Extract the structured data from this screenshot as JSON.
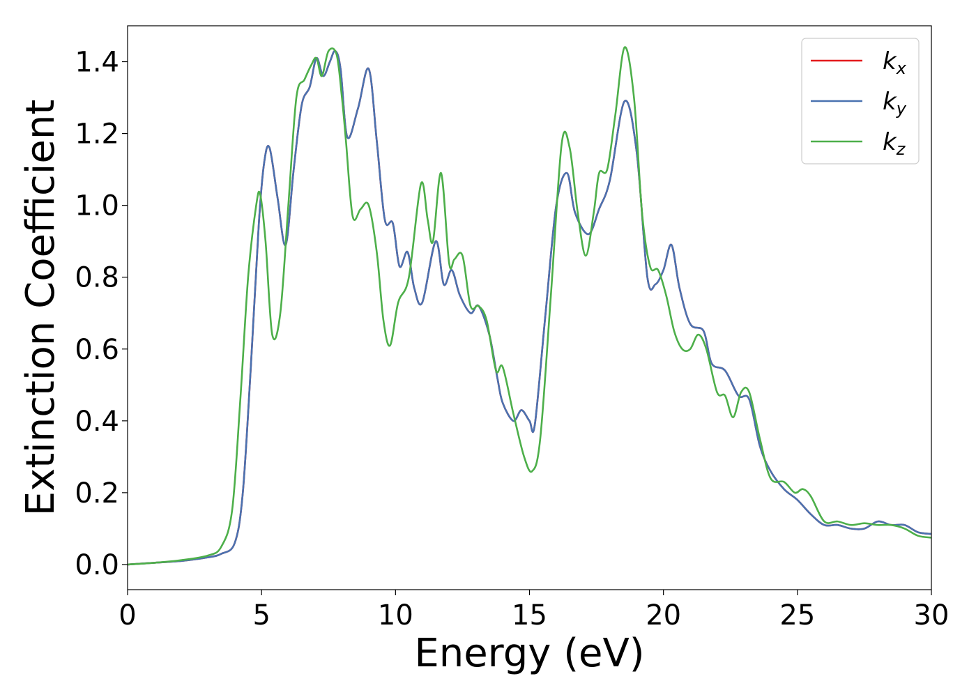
{
  "chart_data": {
    "type": "line",
    "xlabel": "Energy (eV)",
    "ylabel": "Extinction Coefficient",
    "xlim": [
      0,
      30
    ],
    "ylim": [
      -0.07,
      1.5
    ],
    "xticks": [
      0,
      5,
      10,
      15,
      20,
      25,
      30
    ],
    "xtick_labels": [
      "0",
      "5",
      "10",
      "15",
      "20",
      "25",
      "30"
    ],
    "yticks": [
      0.0,
      0.2,
      0.4,
      0.6,
      0.8,
      1.0,
      1.2,
      1.4
    ],
    "ytick_labels": [
      "0.0",
      "0.2",
      "0.4",
      "0.6",
      "0.8",
      "1.0",
      "1.2",
      "1.4"
    ],
    "grid": false,
    "legend_position": "top-right",
    "series": [
      {
        "name": "k_x",
        "label_base": "k",
        "label_sub": "x",
        "color": "#e41a1c",
        "x": [
          0,
          1,
          2,
          3,
          3.5,
          4,
          4.3,
          4.6,
          4.9,
          5.1,
          5.3,
          5.6,
          5.9,
          6.2,
          6.5,
          6.8,
          7.05,
          7.3,
          7.55,
          7.75,
          7.95,
          8.2,
          8.6,
          9.0,
          9.3,
          9.6,
          9.9,
          10.15,
          10.45,
          10.7,
          11.0,
          11.5,
          11.8,
          12.1,
          12.4,
          12.8,
          13.1,
          13.5,
          13.8,
          14.0,
          14.4,
          14.7,
          15.0,
          15.2,
          15.6,
          16.0,
          16.4,
          16.7,
          17.2,
          17.6,
          18.0,
          18.55,
          19.0,
          19.4,
          19.7,
          20.0,
          20.3,
          20.6,
          21.0,
          21.5,
          21.8,
          22.3,
          22.8,
          23.2,
          23.6,
          24.0,
          24.5,
          25.0,
          25.5,
          26.0,
          26.5,
          27.0,
          27.5,
          28.0,
          28.5,
          29.0,
          29.5,
          30.0
        ],
        "y": [
          0,
          0.005,
          0.01,
          0.02,
          0.03,
          0.06,
          0.2,
          0.55,
          0.95,
          1.12,
          1.16,
          1.02,
          0.89,
          1.1,
          1.28,
          1.33,
          1.41,
          1.36,
          1.4,
          1.43,
          1.38,
          1.19,
          1.27,
          1.38,
          1.18,
          0.96,
          0.95,
          0.83,
          0.87,
          0.77,
          0.73,
          0.9,
          0.78,
          0.82,
          0.75,
          0.7,
          0.72,
          0.64,
          0.52,
          0.45,
          0.4,
          0.43,
          0.4,
          0.39,
          0.7,
          1.0,
          1.09,
          0.98,
          0.92,
          0.99,
          1.07,
          1.29,
          1.15,
          0.8,
          0.78,
          0.82,
          0.89,
          0.77,
          0.67,
          0.65,
          0.56,
          0.54,
          0.47,
          0.46,
          0.33,
          0.26,
          0.21,
          0.18,
          0.14,
          0.11,
          0.11,
          0.1,
          0.1,
          0.12,
          0.11,
          0.11,
          0.09,
          0.085
        ]
      },
      {
        "name": "k_y",
        "label_base": "k",
        "label_sub": "y",
        "color": "#4a72b0",
        "x": [
          0,
          1,
          2,
          3,
          3.5,
          4,
          4.3,
          4.6,
          4.9,
          5.1,
          5.3,
          5.6,
          5.9,
          6.2,
          6.5,
          6.8,
          7.05,
          7.3,
          7.55,
          7.75,
          7.95,
          8.2,
          8.6,
          9.0,
          9.3,
          9.6,
          9.9,
          10.15,
          10.45,
          10.7,
          11.0,
          11.5,
          11.8,
          12.1,
          12.4,
          12.8,
          13.1,
          13.5,
          13.8,
          14.0,
          14.4,
          14.7,
          15.0,
          15.2,
          15.6,
          16.0,
          16.4,
          16.7,
          17.2,
          17.6,
          18.0,
          18.55,
          19.0,
          19.4,
          19.7,
          20.0,
          20.3,
          20.6,
          21.0,
          21.5,
          21.8,
          22.3,
          22.8,
          23.2,
          23.6,
          24.0,
          24.5,
          25.0,
          25.5,
          26.0,
          26.5,
          27.0,
          27.5,
          28.0,
          28.5,
          29.0,
          29.5,
          30.0
        ],
        "y": [
          0,
          0.005,
          0.01,
          0.02,
          0.03,
          0.06,
          0.2,
          0.55,
          0.95,
          1.12,
          1.16,
          1.02,
          0.89,
          1.1,
          1.28,
          1.33,
          1.41,
          1.36,
          1.4,
          1.43,
          1.38,
          1.19,
          1.27,
          1.38,
          1.18,
          0.96,
          0.95,
          0.83,
          0.87,
          0.77,
          0.73,
          0.9,
          0.78,
          0.82,
          0.75,
          0.7,
          0.72,
          0.64,
          0.52,
          0.45,
          0.4,
          0.43,
          0.4,
          0.39,
          0.7,
          1.0,
          1.09,
          0.98,
          0.92,
          0.99,
          1.07,
          1.29,
          1.15,
          0.8,
          0.78,
          0.82,
          0.89,
          0.77,
          0.67,
          0.65,
          0.56,
          0.54,
          0.47,
          0.46,
          0.33,
          0.26,
          0.21,
          0.18,
          0.14,
          0.11,
          0.11,
          0.1,
          0.1,
          0.12,
          0.11,
          0.11,
          0.09,
          0.085
        ]
      },
      {
        "name": "k_z",
        "label_base": "k",
        "label_sub": "z",
        "color": "#4daf4a",
        "x": [
          0,
          1,
          2,
          3,
          3.5,
          3.9,
          4.2,
          4.5,
          4.8,
          4.95,
          5.15,
          5.4,
          5.7,
          6.0,
          6.3,
          6.6,
          6.85,
          7.05,
          7.25,
          7.5,
          7.8,
          8.0,
          8.15,
          8.4,
          8.7,
          9.0,
          9.3,
          9.55,
          9.8,
          10.1,
          10.5,
          10.95,
          11.2,
          11.4,
          11.7,
          12.0,
          12.2,
          12.5,
          12.8,
          13.1,
          13.4,
          13.75,
          14.0,
          14.4,
          14.8,
          15.1,
          15.4,
          15.8,
          16.2,
          16.5,
          16.8,
          17.1,
          17.4,
          17.6,
          17.9,
          18.2,
          18.55,
          18.9,
          19.2,
          19.5,
          19.8,
          20.1,
          20.4,
          20.7,
          21.0,
          21.3,
          21.6,
          22.0,
          22.3,
          22.6,
          22.9,
          23.2,
          23.6,
          24.0,
          24.5,
          24.9,
          25.2,
          25.5,
          26.0,
          26.5,
          27.0,
          27.5,
          28.0,
          28.5,
          29.0,
          29.5,
          30.0
        ],
        "y": [
          0,
          0.005,
          0.012,
          0.025,
          0.05,
          0.15,
          0.45,
          0.8,
          1.0,
          1.03,
          0.9,
          0.64,
          0.7,
          1.0,
          1.3,
          1.35,
          1.39,
          1.41,
          1.36,
          1.43,
          1.42,
          1.3,
          1.18,
          0.97,
          0.99,
          1.0,
          0.87,
          0.68,
          0.61,
          0.73,
          0.8,
          1.06,
          0.96,
          0.9,
          1.09,
          0.84,
          0.85,
          0.86,
          0.72,
          0.72,
          0.68,
          0.54,
          0.55,
          0.42,
          0.3,
          0.26,
          0.35,
          0.75,
          1.17,
          1.16,
          0.98,
          0.86,
          0.98,
          1.09,
          1.1,
          1.25,
          1.44,
          1.3,
          0.98,
          0.83,
          0.82,
          0.75,
          0.65,
          0.6,
          0.6,
          0.64,
          0.6,
          0.48,
          0.47,
          0.41,
          0.48,
          0.48,
          0.35,
          0.24,
          0.23,
          0.2,
          0.21,
          0.19,
          0.12,
          0.12,
          0.11,
          0.115,
          0.11,
          0.11,
          0.1,
          0.08,
          0.075
        ]
      }
    ]
  }
}
